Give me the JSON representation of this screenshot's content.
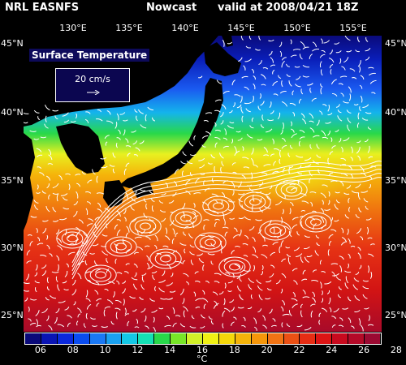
{
  "header": {
    "left": "NRL EASNFS",
    "middle": "Nowcast",
    "right": "valid at 2008/04/21 18Z"
  },
  "map_title": "Surface Temperature",
  "reference_vector": {
    "label": "20 cm/s"
  },
  "longitude_labels": [
    "130°E",
    "135°E",
    "140°E",
    "145°E",
    "150°E",
    "155°E"
  ],
  "latitude_labels": [
    "45°N",
    "40°N",
    "35°N",
    "30°N",
    "25°N"
  ],
  "colorbar": {
    "ticks": [
      "06",
      "08",
      "10",
      "12",
      "14",
      "16",
      "18",
      "20",
      "22",
      "24",
      "26",
      "28"
    ],
    "unit": "°C",
    "colors": [
      "#0a0a7a",
      "#0a14b4",
      "#0a28dc",
      "#0a4cf0",
      "#1a78f4",
      "#1aa0f0",
      "#14c8e6",
      "#14e0b4",
      "#28d84a",
      "#78e628",
      "#d2f028",
      "#f0f014",
      "#f5d70a",
      "#f5b40a",
      "#f5960a",
      "#f07314",
      "#eb5014",
      "#e62d14",
      "#dc1414",
      "#c80a1e",
      "#b40a28",
      "#9b0a32"
    ]
  },
  "colors": {
    "land": "#000000",
    "vectors": "#ffffff",
    "background": "#000000"
  }
}
